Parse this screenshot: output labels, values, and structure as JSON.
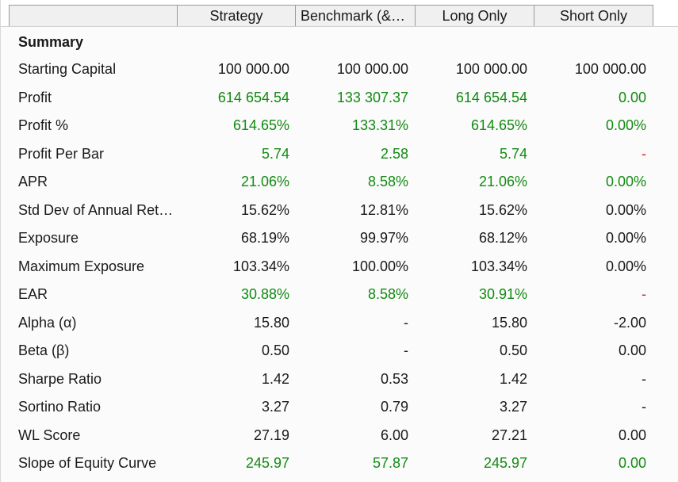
{
  "header": {
    "columns": [
      "Strategy",
      "Benchmark (&E…",
      "Long Only",
      "Short Only"
    ]
  },
  "section_title": "Summary",
  "rows": [
    {
      "label": "Starting Capital",
      "values": [
        "100 000.00",
        "100 000.00",
        "100 000.00",
        "100 000.00"
      ],
      "tones": [
        "neu",
        "neu",
        "neu",
        "neu"
      ]
    },
    {
      "label": "Profit",
      "values": [
        "614 654.54",
        "133 307.37",
        "614 654.54",
        "0.00"
      ],
      "tones": [
        "pos",
        "pos",
        "pos",
        "pos"
      ]
    },
    {
      "label": "Profit %",
      "values": [
        "614.65%",
        "133.31%",
        "614.65%",
        "0.00%"
      ],
      "tones": [
        "pos",
        "pos",
        "pos",
        "pos"
      ]
    },
    {
      "label": "Profit Per Bar",
      "values": [
        "5.74",
        "2.58",
        "5.74",
        "-"
      ],
      "tones": [
        "pos",
        "pos",
        "pos",
        "neg"
      ]
    },
    {
      "label": "APR",
      "values": [
        "21.06%",
        "8.58%",
        "21.06%",
        "0.00%"
      ],
      "tones": [
        "pos",
        "pos",
        "pos",
        "pos"
      ]
    },
    {
      "label": "Std Dev of Annual Ret…",
      "values": [
        "15.62%",
        "12.81%",
        "15.62%",
        "0.00%"
      ],
      "tones": [
        "neu",
        "neu",
        "neu",
        "neu"
      ]
    },
    {
      "label": "Exposure",
      "values": [
        "68.19%",
        "99.97%",
        "68.12%",
        "0.00%"
      ],
      "tones": [
        "neu",
        "neu",
        "neu",
        "neu"
      ]
    },
    {
      "label": "Maximum Exposure",
      "values": [
        "103.34%",
        "100.00%",
        "103.34%",
        "0.00%"
      ],
      "tones": [
        "neu",
        "neu",
        "neu",
        "neu"
      ]
    },
    {
      "label": "EAR",
      "values": [
        "30.88%",
        "8.58%",
        "30.91%",
        "-"
      ],
      "tones": [
        "pos",
        "pos",
        "pos",
        "neg"
      ]
    },
    {
      "label": "Alpha (α)",
      "values": [
        "15.80",
        "-",
        "15.80",
        "-2.00"
      ],
      "tones": [
        "neu",
        "neu",
        "neu",
        "neu"
      ]
    },
    {
      "label": "Beta (β)",
      "values": [
        "0.50",
        "-",
        "0.50",
        "0.00"
      ],
      "tones": [
        "neu",
        "neu",
        "neu",
        "neu"
      ]
    },
    {
      "label": "Sharpe Ratio",
      "values": [
        "1.42",
        "0.53",
        "1.42",
        "-"
      ],
      "tones": [
        "neu",
        "neu",
        "neu",
        "neu"
      ]
    },
    {
      "label": "Sortino Ratio",
      "values": [
        "3.27",
        "0.79",
        "3.27",
        "-"
      ],
      "tones": [
        "neu",
        "neu",
        "neu",
        "neu"
      ]
    },
    {
      "label": "WL Score",
      "values": [
        "27.19",
        "6.00",
        "27.21",
        "0.00"
      ],
      "tones": [
        "neu",
        "neu",
        "neu",
        "neu"
      ]
    },
    {
      "label": "Slope of Equity Curve",
      "values": [
        "245.97",
        "57.87",
        "245.97",
        "0.00"
      ],
      "tones": [
        "pos",
        "pos",
        "pos",
        "pos"
      ]
    }
  ],
  "colors": {
    "positive": "#128a12",
    "negative": "#e02020",
    "neutral": "#1a1a1a"
  }
}
